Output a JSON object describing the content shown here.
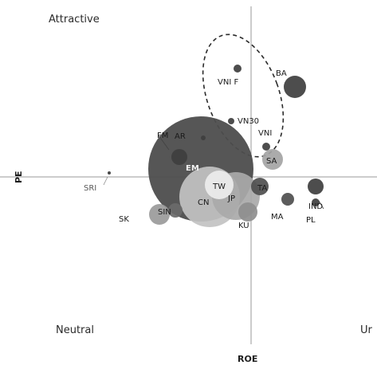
{
  "chart_data": {
    "type": "scatter",
    "subtype": "bubble-quadrant",
    "xlabel": "ROE",
    "ylabel": "PE",
    "quadrants": {
      "top_left": "Attractive",
      "bottom_left": "Neutral",
      "bottom_right": "Ur"
    },
    "xlim": [
      -180,
      160
    ],
    "ylim": [
      -200,
      215
    ],
    "grid": false,
    "legend": "none",
    "points": [
      {
        "label": "SRI",
        "x": -178,
        "y": 5,
        "r": 2,
        "color": "#3a3a3a",
        "label_class": "mid"
      },
      {
        "label": "EM",
        "x": -63,
        "y": 10,
        "r": 66,
        "color": "#4d4d4d",
        "label_class": "light"
      },
      {
        "label": "CN",
        "x": -52,
        "y": -25,
        "r": 38,
        "color": "#c2c2c2",
        "label_class": "dark"
      },
      {
        "label": "TW",
        "x": -40,
        "y": -10,
        "r": 18,
        "color": "#ededed",
        "label_class": "dark"
      },
      {
        "label": "JP",
        "x": -19,
        "y": -24,
        "r": 30,
        "color": "#a9a9a9",
        "label_class": "dark"
      },
      {
        "label": "KU",
        "x": -4,
        "y": -44,
        "r": 12,
        "color": "#8e8e8e",
        "label_class": "dark"
      },
      {
        "label": "SK",
        "x": -115,
        "y": -47,
        "r": 13,
        "color": "#9a9a9a",
        "label_class": "dark"
      },
      {
        "label": "SIN",
        "x": -95,
        "y": -42,
        "r": 9,
        "color": "#6a6a6a",
        "label_class": "dark"
      },
      {
        "label": "FM",
        "x": -90,
        "y": 25,
        "r": 10,
        "color": "#3e3e3e",
        "label_class": "dark"
      },
      {
        "label": "AR",
        "x": -60,
        "y": 49,
        "r": 3,
        "color": "#3e3e3e",
        "label_class": "dark"
      },
      {
        "label": "VNI F",
        "x": -17,
        "y": 136,
        "r": 5,
        "color": "#3e3e3e",
        "label_class": "dark"
      },
      {
        "label": "VN30",
        "x": -25,
        "y": 70,
        "r": 4,
        "color": "#3e3e3e",
        "label_class": "dark"
      },
      {
        "label": "VNI",
        "x": 19,
        "y": 38,
        "r": 5,
        "color": "#3e3e3e",
        "label_class": "dark"
      },
      {
        "label": "SA",
        "x": 27,
        "y": 22,
        "r": 13,
        "color": "#a4a4a4",
        "label_class": "dark"
      },
      {
        "label": "BA",
        "x": 55,
        "y": 113,
        "r": 14,
        "color": "#3e3e3e",
        "label_class": "dark"
      },
      {
        "label": "TA",
        "x": 11,
        "y": -12,
        "r": 11,
        "color": "#4e4e4e",
        "label_class": "dark"
      },
      {
        "label": "MA",
        "x": 46,
        "y": -28,
        "r": 8,
        "color": "#4e4e4e",
        "label_class": "dark"
      },
      {
        "label": "IND",
        "x": 81,
        "y": -12,
        "r": 10,
        "color": "#3e3e3e",
        "label_class": "dark"
      },
      {
        "label": "PL",
        "x": 81,
        "y": -32,
        "r": 5,
        "color": "#3e3e3e",
        "label_class": "dark"
      }
    ]
  }
}
